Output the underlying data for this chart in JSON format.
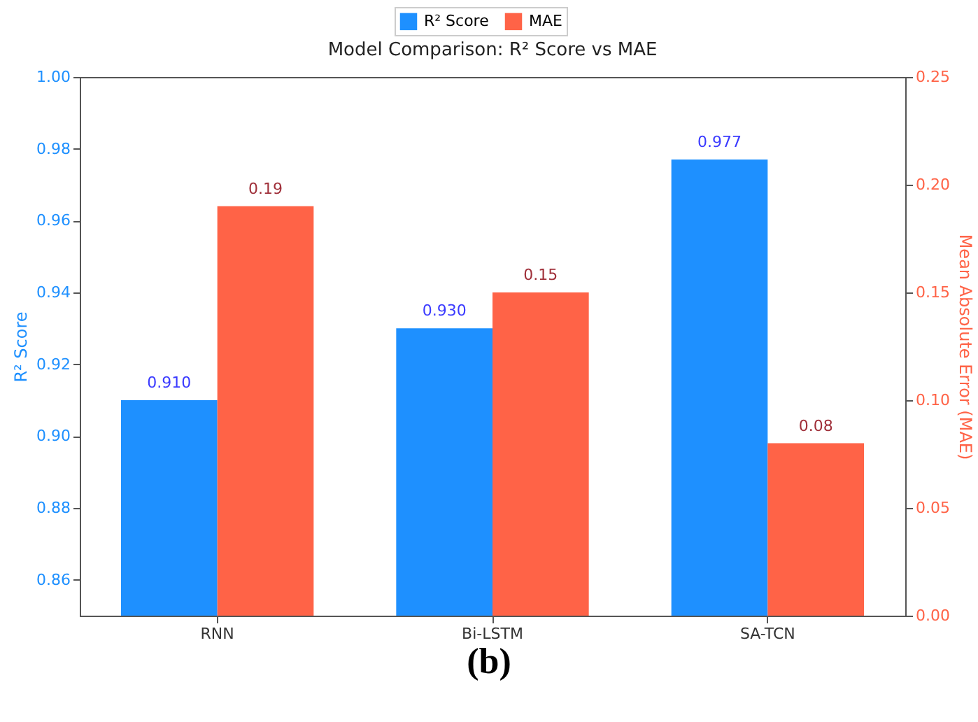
{
  "chart_data": {
    "type": "bar",
    "title": "Model Comparison: R² Score vs MAE",
    "ylabel": "R² Score",
    "y2label": "Mean Absolute Error (MAE)",
    "annotations": [
      "(b)"
    ],
    "categories": [
      "RNN",
      "Bi-LSTM",
      "SA-TCN"
    ],
    "series": [
      {
        "name": "R² Score",
        "color": "#1e90ff",
        "values": [
          0.91,
          0.93,
          0.977
        ],
        "value_labels": [
          "0.910",
          "0.930",
          "0.977"
        ]
      },
      {
        "name": "MAE",
        "color": "#ff6347",
        "axis": "y2",
        "values": [
          0.19,
          0.15,
          0.08
        ],
        "value_labels": [
          "0.19",
          "0.15",
          "0.08"
        ]
      }
    ],
    "ylim": [
      0.85,
      1.0
    ],
    "yticks": [
      0.86,
      0.88,
      {
        "value": 0.9,
        "label": "0.90"
      },
      0.92,
      0.94,
      0.96,
      0.98,
      {
        "value": 1.0,
        "label": "1.00"
      }
    ],
    "y2lim": [
      0,
      0.25
    ],
    "y2ticks": [
      {
        "value": 0,
        "label": "0.00"
      },
      0.05,
      {
        "value": 0.1,
        "label": "0.10"
      },
      0.15,
      {
        "value": 0.2,
        "label": "0.20"
      },
      0.25
    ],
    "grid": false,
    "legend": "top"
  }
}
